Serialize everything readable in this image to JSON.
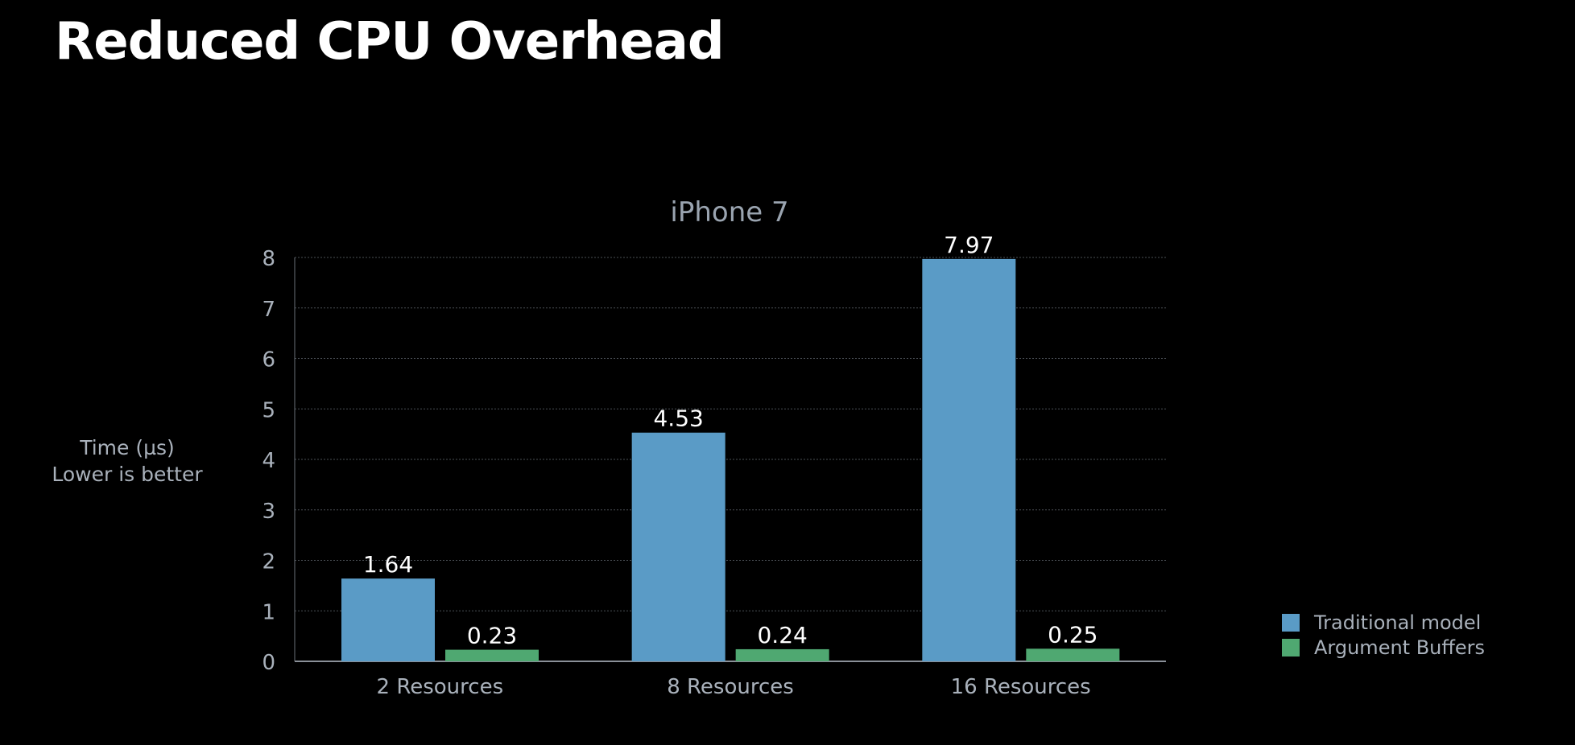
{
  "slide": {
    "title": "Reduced CPU Overhead"
  },
  "colors": {
    "background": "#000000",
    "traditional": "#5a9bc6",
    "argument": "#4fa871",
    "text": "#a9b1bb"
  },
  "chart_data": {
    "type": "bar",
    "title": "iPhone 7",
    "ylabel_lines": [
      "Time (µs)",
      "Lower is better"
    ],
    "xlabel": "",
    "categories": [
      "2 Resources",
      "8 Resources",
      "16 Resources"
    ],
    "series": [
      {
        "name": "Traditional model",
        "values": [
          1.64,
          4.53,
          7.97
        ],
        "labels": [
          "1.64",
          "4.53",
          "7.97"
        ],
        "color": "#5a9bc6"
      },
      {
        "name": "Argument Buffers",
        "values": [
          0.23,
          0.24,
          0.25
        ],
        "labels": [
          "0.23",
          "0.24",
          "0.25"
        ],
        "color": "#4fa871"
      }
    ],
    "ylim": [
      0,
      8
    ],
    "yticks": [
      "0",
      "1",
      "2",
      "3",
      "4",
      "5",
      "6",
      "7",
      "8"
    ],
    "grid": true,
    "legend_position": "bottom-right"
  }
}
